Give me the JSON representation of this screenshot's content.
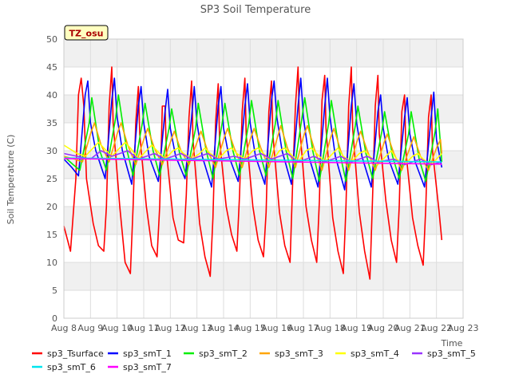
{
  "chart_data": {
    "type": "line",
    "title": "SP3 Soil Temperature",
    "xlabel": "Time",
    "ylabel": "Soil Temperature (C)",
    "ylim": [
      0,
      50
    ],
    "xlim": [
      0,
      15
    ],
    "yticks": [
      0,
      5,
      10,
      15,
      20,
      25,
      30,
      35,
      40,
      45,
      50
    ],
    "x_tick_values": [
      0,
      1,
      2,
      3,
      4,
      5,
      6,
      7,
      8,
      9,
      10,
      11,
      12,
      13,
      14,
      15
    ],
    "x_tick_labels": [
      "Aug 8",
      "Aug 9",
      "Aug 10",
      "Aug 11",
      "Aug 12",
      "Aug 13",
      "Aug 14",
      "Aug 15",
      "Aug 16",
      "Aug 17",
      "Aug 18",
      "Aug 19",
      "Aug 20",
      "Aug 21",
      "Aug 22",
      "Aug 23"
    ],
    "x_units": "days since Aug 8",
    "annotation": "TZ_osu",
    "legend_position": "bottom",
    "background_bands": "alternating light-gray horizontal bands every 5 units",
    "series": [
      {
        "name": "sp3_Tsurface",
        "color": "#ff0000",
        "x": [
          0.0,
          0.25,
          0.45,
          0.55,
          0.65,
          0.75,
          0.85,
          1.1,
          1.3,
          1.5,
          1.6,
          1.7,
          1.8,
          1.85,
          2.1,
          2.3,
          2.5,
          2.6,
          2.7,
          2.8,
          2.85,
          3.1,
          3.3,
          3.5,
          3.6,
          3.7,
          3.8,
          3.85,
          4.1,
          4.3,
          4.5,
          4.6,
          4.7,
          4.8,
          4.85,
          5.1,
          5.3,
          5.5,
          5.6,
          5.7,
          5.8,
          5.85,
          6.1,
          6.3,
          6.5,
          6.6,
          6.7,
          6.8,
          6.85,
          7.1,
          7.3,
          7.5,
          7.6,
          7.7,
          7.8,
          7.85,
          8.1,
          8.3,
          8.5,
          8.6,
          8.7,
          8.8,
          8.85,
          9.1,
          9.3,
          9.5,
          9.6,
          9.7,
          9.8,
          9.85,
          10.1,
          10.3,
          10.5,
          10.6,
          10.7,
          10.8,
          10.85,
          11.1,
          11.3,
          11.5,
          11.6,
          11.7,
          11.8,
          11.85,
          12.1,
          12.3,
          12.5,
          12.6,
          12.7,
          12.8,
          12.85,
          13.1,
          13.3,
          13.5,
          13.6,
          13.7,
          13.8,
          13.85,
          14.1,
          14.2
        ],
        "values": [
          16.5,
          12.0,
          25.0,
          40.0,
          43.0,
          38.0,
          25.0,
          17.0,
          13.0,
          12.0,
          20.0,
          38.0,
          45.0,
          35.0,
          20.0,
          10.0,
          8.0,
          20.0,
          35.0,
          41.5,
          33.0,
          20.0,
          13.0,
          11.0,
          20.0,
          38.0,
          38.0,
          30.0,
          18.0,
          14.0,
          13.5,
          22.0,
          36.0,
          42.5,
          32.0,
          17.0,
          11.0,
          7.5,
          18.0,
          35.0,
          42.0,
          32.0,
          20.0,
          15.0,
          12.0,
          22.0,
          37.0,
          43.0,
          33.0,
          20.0,
          14.0,
          11.0,
          19.0,
          37.0,
          42.5,
          33.0,
          19.0,
          13.0,
          10.0,
          25.0,
          38.0,
          45.0,
          35.0,
          20.0,
          14.0,
          10.0,
          21.0,
          39.0,
          43.5,
          34.0,
          18.0,
          12.0,
          8.0,
          20.0,
          38.0,
          45.0,
          34.0,
          19.0,
          12.0,
          7.0,
          22.0,
          38.0,
          43.5,
          33.0,
          21.0,
          14.0,
          10.0,
          20.0,
          37.0,
          40.0,
          30.0,
          18.0,
          13.0,
          9.5,
          20.0,
          36.0,
          40.0,
          30.0,
          19.0,
          14.0
        ]
      },
      {
        "name": "sp3_smT_1",
        "color": "#0000ff",
        "x": [
          0.0,
          0.3,
          0.55,
          0.8,
          0.9,
          1.0,
          1.2,
          1.55,
          1.8,
          1.9,
          2.0,
          2.2,
          2.55,
          2.8,
          2.9,
          3.0,
          3.2,
          3.55,
          3.8,
          3.9,
          4.0,
          4.2,
          4.55,
          4.8,
          4.9,
          5.0,
          5.2,
          5.55,
          5.8,
          5.9,
          6.0,
          6.2,
          6.55,
          6.8,
          6.9,
          7.0,
          7.2,
          7.55,
          7.8,
          7.9,
          8.0,
          8.2,
          8.55,
          8.8,
          8.9,
          9.0,
          9.2,
          9.55,
          9.8,
          9.9,
          10.0,
          10.2,
          10.55,
          10.8,
          10.9,
          11.0,
          11.2,
          11.55,
          11.8,
          11.9,
          12.0,
          12.2,
          12.55,
          12.8,
          12.9,
          13.0,
          13.2,
          13.55,
          13.8,
          13.9,
          14.0,
          14.2
        ],
        "values": [
          28.5,
          27.0,
          25.5,
          40.0,
          42.5,
          35.0,
          30.0,
          25.0,
          39.0,
          43.0,
          36.0,
          30.0,
          24.0,
          38.0,
          41.5,
          35.0,
          29.0,
          24.5,
          37.0,
          41.0,
          34.0,
          29.0,
          25.0,
          36.0,
          41.5,
          35.0,
          29.0,
          23.5,
          38.0,
          41.5,
          34.0,
          29.0,
          24.5,
          38.0,
          42.0,
          35.0,
          29.0,
          24.0,
          39.0,
          42.5,
          36.0,
          30.0,
          24.0,
          38.0,
          43.0,
          36.0,
          29.0,
          23.5,
          38.0,
          43.0,
          36.0,
          29.0,
          23.0,
          38.0,
          42.0,
          35.0,
          29.0,
          23.5,
          37.0,
          40.0,
          34.0,
          28.5,
          24.0,
          36.0,
          39.5,
          33.0,
          28.0,
          23.5,
          36.0,
          40.5,
          32.0,
          27.0
        ]
      },
      {
        "name": "sp3_smT_2",
        "color": "#00ee00",
        "x": [
          0.0,
          0.35,
          0.6,
          0.95,
          1.05,
          1.35,
          1.6,
          1.95,
          2.05,
          2.35,
          2.6,
          2.95,
          3.05,
          3.35,
          3.6,
          3.95,
          4.05,
          4.35,
          4.6,
          4.95,
          5.05,
          5.35,
          5.6,
          5.95,
          6.05,
          6.35,
          6.6,
          6.95,
          7.05,
          7.35,
          7.6,
          7.95,
          8.05,
          8.35,
          8.6,
          8.95,
          9.05,
          9.35,
          9.6,
          9.95,
          10.05,
          10.35,
          10.6,
          10.95,
          11.05,
          11.35,
          11.6,
          11.95,
          12.05,
          12.35,
          12.6,
          12.95,
          13.05,
          13.35,
          13.6,
          13.95,
          14.05,
          14.2
        ],
        "values": [
          29.0,
          27.5,
          26.5,
          35.0,
          39.5,
          30.0,
          26.5,
          36.0,
          40.0,
          30.5,
          25.5,
          35.0,
          38.5,
          30.0,
          25.5,
          34.0,
          37.5,
          29.5,
          25.5,
          34.0,
          38.5,
          30.0,
          25.0,
          35.0,
          38.5,
          30.0,
          25.5,
          35.0,
          39.0,
          30.0,
          25.5,
          35.0,
          39.0,
          30.0,
          25.0,
          36.0,
          39.5,
          30.0,
          24.5,
          35.0,
          39.0,
          30.0,
          24.5,
          34.5,
          38.0,
          29.5,
          25.0,
          33.5,
          37.0,
          29.0,
          25.0,
          33.0,
          37.0,
          28.5,
          24.5,
          33.5,
          37.5,
          28.0
        ]
      },
      {
        "name": "sp3_smT_3",
        "color": "#ffa500",
        "x": [
          0.0,
          0.4,
          0.7,
          1.0,
          1.15,
          1.4,
          1.7,
          2.0,
          2.15,
          2.4,
          2.7,
          3.0,
          3.15,
          3.4,
          3.7,
          4.0,
          4.15,
          4.4,
          4.7,
          5.0,
          5.15,
          5.4,
          5.7,
          6.0,
          6.15,
          6.4,
          6.7,
          7.0,
          7.15,
          7.4,
          7.7,
          8.0,
          8.15,
          8.4,
          8.7,
          9.0,
          9.15,
          9.4,
          9.7,
          10.0,
          10.15,
          10.4,
          10.7,
          11.0,
          11.15,
          11.4,
          11.7,
          12.0,
          12.15,
          12.4,
          12.7,
          13.0,
          13.15,
          13.4,
          13.7,
          14.0,
          14.15,
          14.2
        ],
        "values": [
          29.0,
          28.5,
          28.0,
          33.0,
          35.0,
          31.0,
          28.0,
          33.0,
          35.0,
          31.0,
          27.5,
          32.0,
          34.0,
          30.5,
          27.5,
          31.5,
          33.5,
          30.0,
          27.5,
          31.5,
          33.5,
          30.0,
          27.0,
          32.0,
          34.0,
          30.5,
          27.0,
          32.0,
          34.0,
          30.5,
          27.0,
          32.0,
          34.5,
          30.5,
          27.0,
          32.5,
          34.5,
          30.5,
          26.5,
          32.0,
          34.0,
          30.0,
          26.5,
          31.5,
          33.5,
          30.0,
          26.5,
          31.0,
          33.0,
          29.5,
          26.5,
          30.5,
          32.5,
          29.0,
          26.5,
          30.5,
          32.0,
          29.5
        ]
      },
      {
        "name": "sp3_smT_4",
        "color": "#ffff00",
        "x": [
          0.0,
          0.5,
          0.8,
          1.1,
          1.3,
          1.5,
          1.8,
          2.1,
          2.3,
          2.5,
          2.8,
          3.1,
          3.3,
          3.5,
          3.8,
          4.1,
          4.3,
          4.5,
          4.8,
          5.1,
          5.3,
          5.5,
          5.8,
          6.1,
          6.3,
          6.5,
          6.8,
          7.1,
          7.3,
          7.5,
          7.8,
          8.1,
          8.3,
          8.5,
          8.8,
          9.1,
          9.3,
          9.5,
          9.8,
          10.1,
          10.3,
          10.5,
          10.8,
          11.1,
          11.3,
          11.5,
          11.8,
          12.1,
          12.3,
          12.5,
          12.8,
          13.1,
          13.3,
          13.5,
          13.8,
          14.1,
          14.2
        ],
        "values": [
          31.0,
          29.5,
          29.0,
          30.5,
          31.5,
          30.5,
          29.0,
          30.5,
          31.5,
          30.5,
          28.5,
          30.0,
          31.0,
          30.0,
          28.5,
          30.0,
          30.5,
          29.5,
          28.5,
          29.5,
          30.5,
          29.5,
          28.5,
          30.0,
          30.5,
          29.5,
          28.5,
          30.0,
          30.5,
          29.5,
          28.0,
          30.0,
          30.5,
          29.5,
          28.0,
          30.0,
          30.5,
          29.5,
          28.0,
          29.5,
          30.5,
          29.0,
          28.0,
          29.5,
          30.0,
          29.0,
          27.5,
          29.0,
          30.0,
          28.5,
          27.5,
          29.0,
          29.5,
          28.5,
          27.5,
          29.0,
          29.5
        ]
      },
      {
        "name": "sp3_smT_5",
        "color": "#9933ff",
        "x": [
          0.0,
          0.5,
          1.0,
          1.4,
          1.8,
          2.4,
          2.8,
          3.4,
          3.8,
          4.4,
          4.8,
          5.4,
          5.8,
          6.4,
          6.8,
          7.4,
          7.8,
          8.4,
          8.8,
          9.4,
          9.8,
          10.4,
          10.8,
          11.4,
          11.8,
          12.4,
          12.8,
          13.4,
          13.8,
          14.2
        ],
        "values": [
          29.5,
          29.0,
          28.5,
          30.0,
          29.0,
          30.0,
          28.5,
          29.5,
          28.5,
          29.5,
          28.5,
          29.5,
          28.5,
          29.0,
          28.5,
          29.5,
          28.5,
          29.5,
          28.0,
          29.0,
          28.0,
          29.0,
          28.0,
          29.0,
          28.0,
          28.5,
          27.5,
          28.5,
          27.5,
          28.0
        ]
      },
      {
        "name": "sp3_smT_6",
        "color": "#00e5ee",
        "x": [
          0.0,
          14.2
        ],
        "values": [
          28.7,
          28.0
        ]
      },
      {
        "name": "sp3_smT_7",
        "color": "#ff00ff",
        "x": [
          0.0,
          14.2
        ],
        "values": [
          28.6,
          27.6
        ]
      }
    ]
  }
}
